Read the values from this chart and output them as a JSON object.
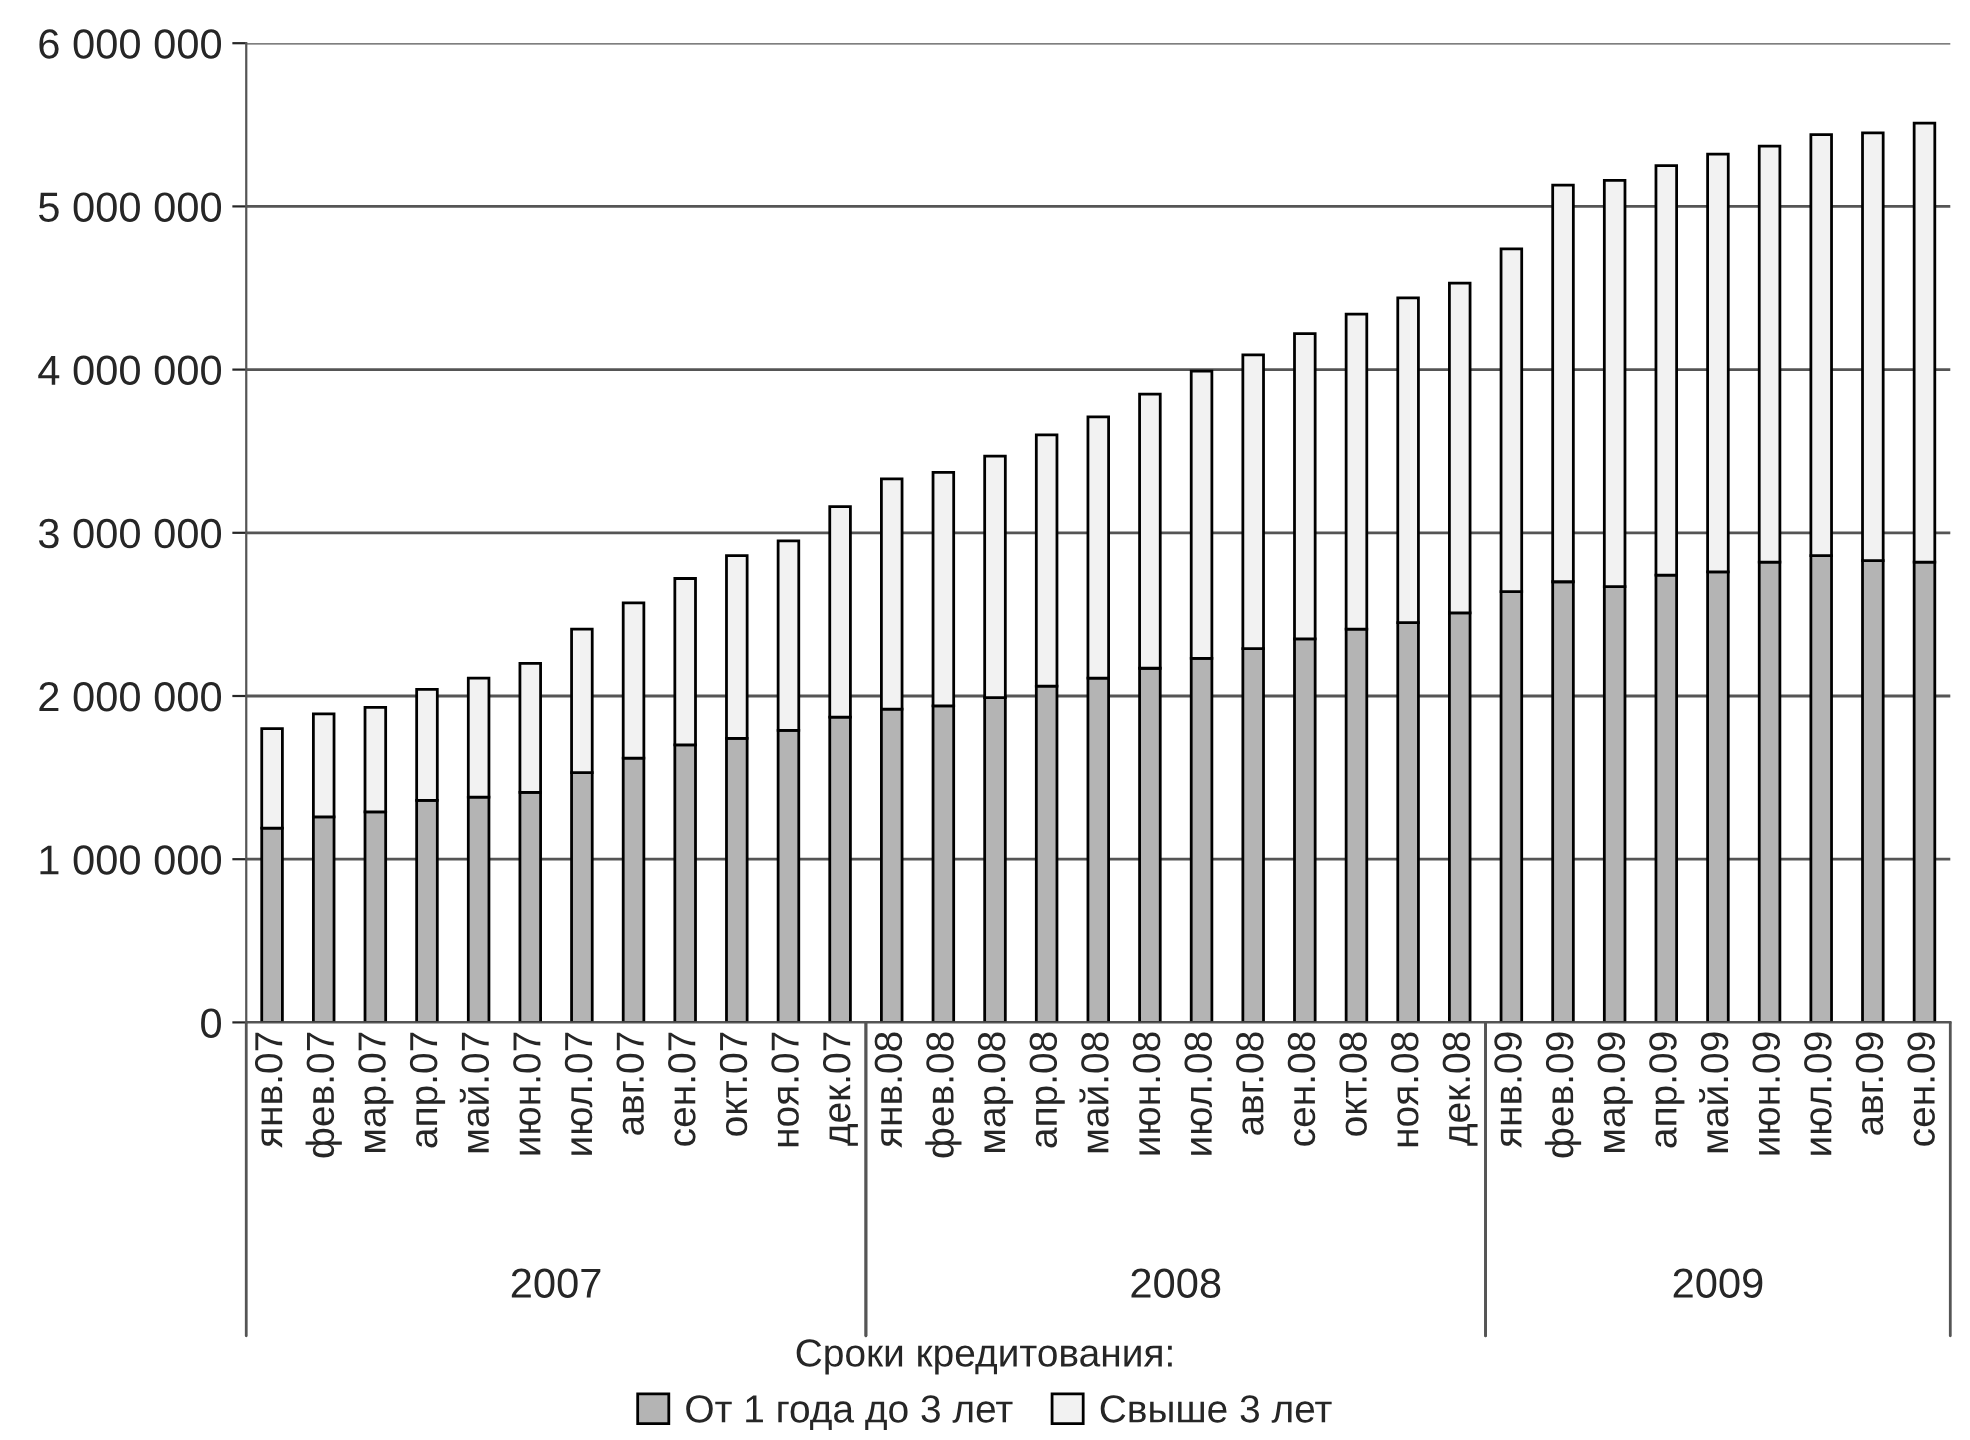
{
  "chart_data": {
    "type": "bar",
    "stacked": true,
    "legend_title": "Сроки кредитования:",
    "legend": "bottom",
    "grid": "y",
    "categories": [
      "янв.07",
      "фев.07",
      "мар.07",
      "апр.07",
      "май.07",
      "июн.07",
      "июл.07",
      "авг.07",
      "сен.07",
      "окт.07",
      "ноя.07",
      "дек.07",
      "янв.08",
      "фев.08",
      "мар.08",
      "апр.08",
      "май.08",
      "июн.08",
      "июл.08",
      "авг.08",
      "сен.08",
      "окт.08",
      "ноя.08",
      "дек.08",
      "янв.09",
      "фев.09",
      "мар.09",
      "апр.09",
      "май.09",
      "июн.09",
      "июл.09",
      "авг.09",
      "сен.09"
    ],
    "series": [
      {
        "name": "От 1 года до 3 лет",
        "color": "#b4b4b4",
        "values": [
          1190000,
          1260000,
          1290000,
          1360000,
          1380000,
          1410000,
          1530000,
          1620000,
          1700000,
          1740000,
          1790000,
          1870000,
          1920000,
          1940000,
          1990000,
          2060000,
          2110000,
          2170000,
          2230000,
          2290000,
          2350000,
          2410000,
          2450000,
          2510000,
          2640000,
          2700000,
          2670000,
          2740000,
          2760000,
          2820000,
          2860000,
          2830000,
          2820000
        ]
      },
      {
        "name": "Свыше 3 лет",
        "color": "#f2f2f2",
        "values": [
          610000,
          630000,
          640000,
          680000,
          730000,
          790000,
          880000,
          950000,
          1020000,
          1120000,
          1160000,
          1290000,
          1410000,
          1430000,
          1480000,
          1540000,
          1600000,
          1680000,
          1760000,
          1800000,
          1870000,
          1930000,
          1990000,
          2020000,
          2100000,
          2430000,
          2490000,
          2510000,
          2560000,
          2550000,
          2580000,
          2620000,
          2690000
        ]
      }
    ],
    "ylim": [
      0,
      6000000
    ],
    "yticks": [
      0,
      {
        "value": 1000000,
        "label": "1 000 000"
      },
      {
        "value": 2000000,
        "label": "2 000 000"
      },
      {
        "value": 3000000,
        "label": "3 000 000"
      },
      {
        "value": 4000000,
        "label": "4 000 000"
      },
      {
        "value": 5000000,
        "label": "5 000 000"
      },
      {
        "value": 6000000,
        "label": "6 000 000"
      }
    ],
    "annotations": [
      "2007",
      "2008",
      "2009"
    ]
  }
}
